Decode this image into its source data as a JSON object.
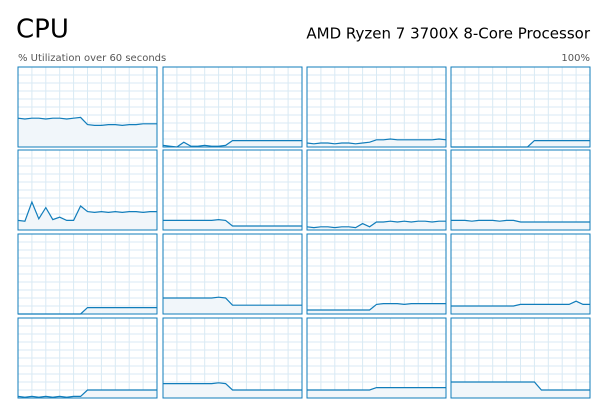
{
  "header": {
    "title": "CPU",
    "processor": "AMD Ryzen 7 3700X 8-Core Processor"
  },
  "graph": {
    "caption": "% Utilization over 60 seconds",
    "ymin": 0,
    "ymax": {
      "value": 100,
      "label": "100%"
    },
    "cores": [
      {
        "values": [
          36,
          35,
          36,
          36,
          35,
          36,
          36,
          35,
          36,
          37,
          28,
          27,
          27,
          28,
          28,
          27,
          28,
          28,
          29,
          29,
          29
        ]
      },
      {
        "values": [
          2,
          1,
          0,
          6,
          1,
          1,
          2,
          1,
          1,
          2,
          8,
          8,
          8,
          8,
          8,
          8,
          8,
          8,
          8,
          8,
          8
        ]
      },
      {
        "values": [
          5,
          4,
          5,
          5,
          4,
          5,
          5,
          4,
          5,
          6,
          9,
          9,
          10,
          9,
          9,
          9,
          9,
          9,
          9,
          10,
          9
        ]
      },
      {
        "values": [
          0,
          0,
          0,
          0,
          0,
          0,
          0,
          0,
          0,
          0,
          0,
          0,
          8,
          8,
          8,
          8,
          8,
          8,
          8,
          8,
          8
        ]
      },
      {
        "values": [
          12,
          11,
          35,
          14,
          28,
          13,
          16,
          12,
          12,
          30,
          23,
          22,
          23,
          22,
          23,
          22,
          23,
          23,
          22,
          23,
          23
        ]
      },
      {
        "values": [
          12,
          12,
          12,
          12,
          12,
          12,
          12,
          12,
          13,
          12,
          5,
          5,
          5,
          5,
          5,
          5,
          5,
          5,
          5,
          5,
          5
        ]
      },
      {
        "values": [
          4,
          3,
          4,
          4,
          3,
          4,
          4,
          3,
          8,
          4,
          10,
          10,
          11,
          10,
          11,
          10,
          11,
          11,
          10,
          11,
          11
        ]
      },
      {
        "values": [
          12,
          12,
          12,
          11,
          12,
          12,
          12,
          11,
          12,
          12,
          10,
          10,
          10,
          10,
          10,
          10,
          10,
          10,
          10,
          10,
          10
        ]
      },
      {
        "values": [
          0,
          0,
          0,
          0,
          0,
          0,
          0,
          0,
          0,
          0,
          8,
          8,
          8,
          8,
          8,
          8,
          8,
          8,
          8,
          8,
          8
        ]
      },
      {
        "values": [
          20,
          20,
          20,
          20,
          20,
          20,
          20,
          20,
          21,
          20,
          11,
          11,
          11,
          11,
          11,
          11,
          11,
          11,
          11,
          11,
          11
        ]
      },
      {
        "values": [
          5,
          5,
          5,
          5,
          5,
          5,
          5,
          5,
          5,
          5,
          12,
          13,
          13,
          13,
          12,
          13,
          13,
          13,
          13,
          13,
          13
        ]
      },
      {
        "values": [
          10,
          10,
          10,
          10,
          10,
          10,
          10,
          10,
          10,
          10,
          12,
          12,
          12,
          12,
          12,
          12,
          12,
          12,
          16,
          12,
          12
        ]
      },
      {
        "values": [
          2,
          1,
          2,
          1,
          2,
          1,
          2,
          1,
          2,
          2,
          10,
          10,
          10,
          10,
          10,
          10,
          10,
          10,
          10,
          10,
          10
        ]
      },
      {
        "values": [
          18,
          18,
          18,
          18,
          18,
          18,
          18,
          18,
          19,
          18,
          10,
          10,
          10,
          10,
          10,
          10,
          10,
          10,
          10,
          10,
          10
        ]
      },
      {
        "values": [
          10,
          10,
          10,
          10,
          10,
          10,
          10,
          10,
          10,
          10,
          13,
          13,
          13,
          13,
          13,
          13,
          13,
          13,
          13,
          13,
          13
        ]
      },
      {
        "values": [
          20,
          20,
          20,
          20,
          20,
          20,
          20,
          20,
          20,
          20,
          20,
          20,
          20,
          10,
          10,
          10,
          10,
          10,
          10,
          10,
          10
        ]
      }
    ]
  }
}
